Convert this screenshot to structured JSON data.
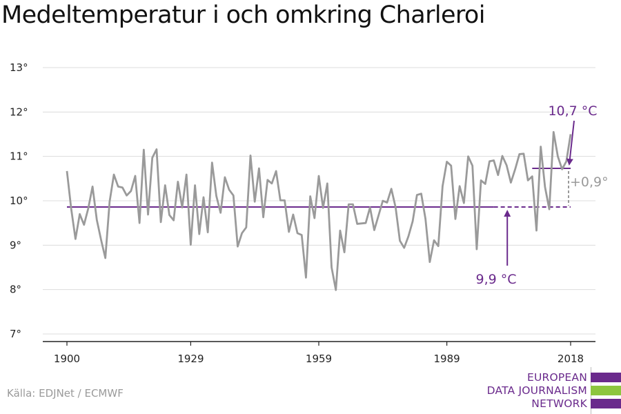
{
  "chart_data": {
    "type": "line",
    "title": "Medeltemperatur i och omkring Charleroi",
    "xlabel": "",
    "ylabel": "",
    "xlim": [
      1900,
      2018
    ],
    "ylim": [
      7,
      13
    ],
    "x_ticks": [
      1900,
      1929,
      1959,
      1989,
      2018
    ],
    "x_tick_labels": [
      "1900",
      "1929",
      "1959",
      "1989",
      "2018"
    ],
    "y_ticks": [
      7,
      8,
      9,
      10,
      11,
      12,
      13
    ],
    "y_tick_labels": [
      "7°",
      "8°",
      "9°",
      "10°",
      "11°",
      "12°",
      "13°"
    ],
    "grid": true,
    "series": [
      {
        "color": "#9a9a9a",
        "x": [
          1900,
          1901,
          1902,
          1903,
          1904,
          1905,
          1906,
          1907,
          1908,
          1909,
          1910,
          1911,
          1912,
          1913,
          1914,
          1915,
          1916,
          1917,
          1918,
          1919,
          1920,
          1921,
          1922,
          1923,
          1924,
          1925,
          1926,
          1927,
          1928,
          1929,
          1930,
          1931,
          1932,
          1933,
          1934,
          1935,
          1936,
          1937,
          1938,
          1939,
          1940,
          1941,
          1942,
          1943,
          1944,
          1945,
          1946,
          1947,
          1948,
          1949,
          1950,
          1951,
          1952,
          1953,
          1954,
          1955,
          1956,
          1957,
          1958,
          1959,
          1960,
          1961,
          1962,
          1963,
          1964,
          1965,
          1966,
          1967,
          1968,
          1969,
          1970,
          1971,
          1972,
          1973,
          1974,
          1975,
          1976,
          1977,
          1978,
          1979,
          1980,
          1981,
          1982,
          1983,
          1984,
          1985,
          1986,
          1987,
          1988,
          1989,
          1990,
          1991,
          1992,
          1993,
          1994,
          1995,
          1996,
          1997,
          1998,
          1999,
          2000,
          2001,
          2002,
          2003,
          2004,
          2005,
          2006,
          2007,
          2008,
          2009,
          2010,
          2011,
          2012,
          2013,
          2014,
          2015,
          2016,
          2017,
          2018
        ],
        "values": [
          10.67,
          9.82,
          9.14,
          9.7,
          9.46,
          9.83,
          10.32,
          9.57,
          9.12,
          8.71,
          9.98,
          10.59,
          10.32,
          10.3,
          10.12,
          10.22,
          10.56,
          9.5,
          11.15,
          9.69,
          10.97,
          11.16,
          9.52,
          10.35,
          9.68,
          9.56,
          10.43,
          9.85,
          10.59,
          9.01,
          10.35,
          9.25,
          10.08,
          9.29,
          10.86,
          10.11,
          9.73,
          10.53,
          10.25,
          10.12,
          8.97,
          9.27,
          9.4,
          11.02,
          9.98,
          10.73,
          9.63,
          10.47,
          10.39,
          10.67,
          10.01,
          10.01,
          9.3,
          9.69,
          9.27,
          9.23,
          8.27,
          10.1,
          9.61,
          10.56,
          9.84,
          10.39,
          8.5,
          7.99,
          9.33,
          8.84,
          9.92,
          9.92,
          9.48,
          9.49,
          9.5,
          9.85,
          9.34,
          9.67,
          10.0,
          9.96,
          10.27,
          9.85,
          9.1,
          8.94,
          9.2,
          9.54,
          10.13,
          10.16,
          9.59,
          8.62,
          9.11,
          8.98,
          10.33,
          10.88,
          10.79,
          9.59,
          10.33,
          9.95,
          11.0,
          10.79,
          8.91,
          10.46,
          10.38,
          10.89,
          10.91,
          10.58,
          11.01,
          10.8,
          10.41,
          10.71,
          11.05,
          11.06,
          10.46,
          10.55,
          9.33,
          11.22,
          10.31,
          9.81,
          11.55,
          11.0,
          10.71,
          10.89,
          11.5
        ]
      }
    ],
    "reference_lines": [
      {
        "kind": "baseline-mean",
        "value": 9.86,
        "x_solid": [
          1900,
          2000
        ],
        "x_dashed": [
          2000,
          2018
        ],
        "color": "#6a2a8c"
      },
      {
        "kind": "recent-mean",
        "value": 10.73,
        "x": [
          2009,
          2018
        ],
        "color": "#6a2a8c"
      }
    ],
    "annotations": [
      {
        "text": "10,7 °C",
        "color": "#6a2a8c",
        "arrow_to": [
          2018,
          10.73
        ]
      },
      {
        "text": "9,9 °C",
        "color": "#6a2a8c",
        "arrow_to": [
          2003,
          9.86
        ]
      },
      {
        "text": "+0,9°",
        "color": "#9a9a9a"
      }
    ]
  },
  "source": "Källa: EDJNet / ECMWF",
  "logo": {
    "lines": [
      "EUROPEAN",
      "DATA JOURNALISM",
      "NETWORK"
    ],
    "colors": {
      "purple": "#6a2a8c",
      "green": "#8dc63f"
    }
  }
}
